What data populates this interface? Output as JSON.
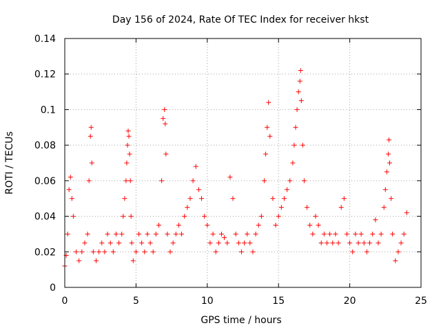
{
  "chart_data": {
    "type": "scatter",
    "title": "Day 156 of 2024, Rate Of TEC Index for receiver hkst",
    "xlabel": "GPS time / hours",
    "ylabel": "ROTI / TECUs",
    "xlim": [
      0,
      25
    ],
    "ylim": [
      0,
      0.14
    ],
    "xticks": [
      0,
      5,
      10,
      15,
      20,
      25
    ],
    "xtick_labels": [
      "0",
      "5",
      "10",
      "15",
      "20",
      "25"
    ],
    "yticks": [
      0,
      0.02,
      0.04,
      0.06,
      0.08,
      0.1,
      0.12,
      0.14
    ],
    "ytick_labels": [
      "0",
      "0.02",
      "0.04",
      "0.06",
      "0.08",
      "0.1",
      "0.12",
      "0.14"
    ],
    "grid": true,
    "marker": "+",
    "series_color": "#ff0000",
    "series": [
      {
        "name": "ROTI",
        "x": [
          0.0,
          0.1,
          0.2,
          0.3,
          0.4,
          0.5,
          0.6,
          0.8,
          1.0,
          1.2,
          1.4,
          1.6,
          1.7,
          1.8,
          1.85,
          1.9,
          2.0,
          2.2,
          2.4,
          2.6,
          2.8,
          3.0,
          3.2,
          3.4,
          3.6,
          3.8,
          4.0,
          4.1,
          4.2,
          4.3,
          4.35,
          4.4,
          4.45,
          4.5,
          4.55,
          4.6,
          4.65,
          4.7,
          4.8,
          5.0,
          5.2,
          5.4,
          5.6,
          5.8,
          6.0,
          6.2,
          6.4,
          6.6,
          6.8,
          6.9,
          7.0,
          7.05,
          7.1,
          7.2,
          7.4,
          7.6,
          7.8,
          8.0,
          8.2,
          8.4,
          8.6,
          8.8,
          9.0,
          9.2,
          9.4,
          9.6,
          9.8,
          10.0,
          10.2,
          10.4,
          10.6,
          10.8,
          11.0,
          11.2,
          11.4,
          11.6,
          11.8,
          12.0,
          12.2,
          12.4,
          12.6,
          12.8,
          13.0,
          13.2,
          13.4,
          13.6,
          13.8,
          14.0,
          14.1,
          14.2,
          14.3,
          14.4,
          14.6,
          14.8,
          15.0,
          15.2,
          15.4,
          15.6,
          15.8,
          16.0,
          16.1,
          16.2,
          16.3,
          16.4,
          16.5,
          16.55,
          16.6,
          16.7,
          16.8,
          17.0,
          17.2,
          17.4,
          17.6,
          17.8,
          18.0,
          18.2,
          18.4,
          18.6,
          18.8,
          19.0,
          19.2,
          19.4,
          19.6,
          19.8,
          20.0,
          20.2,
          20.4,
          20.6,
          20.8,
          21.0,
          21.2,
          21.4,
          21.6,
          21.8,
          22.0,
          22.2,
          22.4,
          22.5,
          22.6,
          22.7,
          22.75,
          22.8,
          22.9,
          23.0,
          23.2,
          23.4,
          23.6,
          23.8,
          24.0
        ],
        "y": [
          0.012,
          0.018,
          0.03,
          0.055,
          0.062,
          0.05,
          0.04,
          0.02,
          0.015,
          0.02,
          0.025,
          0.03,
          0.06,
          0.085,
          0.09,
          0.07,
          0.02,
          0.015,
          0.02,
          0.025,
          0.02,
          0.03,
          0.025,
          0.02,
          0.03,
          0.025,
          0.03,
          0.04,
          0.05,
          0.06,
          0.07,
          0.08,
          0.088,
          0.085,
          0.075,
          0.06,
          0.04,
          0.025,
          0.015,
          0.02,
          0.03,
          0.025,
          0.02,
          0.03,
          0.025,
          0.02,
          0.03,
          0.035,
          0.06,
          0.095,
          0.1,
          0.092,
          0.075,
          0.03,
          0.02,
          0.025,
          0.03,
          0.035,
          0.03,
          0.04,
          0.045,
          0.05,
          0.06,
          0.068,
          0.055,
          0.05,
          0.04,
          0.035,
          0.025,
          0.03,
          0.02,
          0.025,
          0.03,
          0.028,
          0.025,
          0.062,
          0.05,
          0.03,
          0.025,
          0.02,
          0.025,
          0.03,
          0.025,
          0.02,
          0.03,
          0.035,
          0.04,
          0.06,
          0.075,
          0.09,
          0.104,
          0.085,
          0.05,
          0.035,
          0.04,
          0.045,
          0.05,
          0.055,
          0.06,
          0.07,
          0.08,
          0.09,
          0.1,
          0.11,
          0.116,
          0.122,
          0.105,
          0.08,
          0.06,
          0.045,
          0.035,
          0.03,
          0.04,
          0.035,
          0.025,
          0.03,
          0.025,
          0.03,
          0.025,
          0.03,
          0.025,
          0.045,
          0.05,
          0.03,
          0.025,
          0.02,
          0.03,
          0.025,
          0.03,
          0.025,
          0.02,
          0.025,
          0.03,
          0.038,
          0.025,
          0.03,
          0.045,
          0.055,
          0.065,
          0.075,
          0.083,
          0.07,
          0.05,
          0.03,
          0.015,
          0.02,
          0.025,
          0.03,
          0.042
        ]
      }
    ]
  }
}
